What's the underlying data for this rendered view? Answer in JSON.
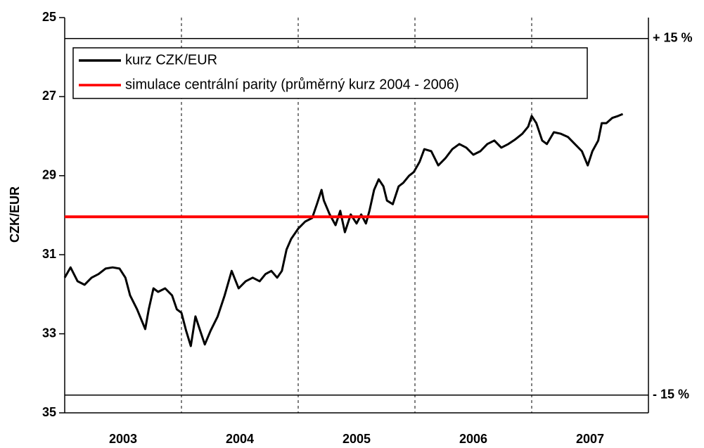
{
  "chart_data": {
    "type": "line",
    "ylabel": "CZK/EUR",
    "categories": [
      "2003",
      "2004",
      "2005",
      "2006",
      "2007"
    ],
    "xlim": [
      2003,
      2008
    ],
    "ylim": [
      25,
      35
    ],
    "y_inverted": true,
    "yticks": [
      25,
      27,
      29,
      31,
      33,
      35
    ],
    "legend": "upper left",
    "series": [
      {
        "name": "kurz CZK/EUR",
        "color": "#000000",
        "x": [
          2003.0,
          2003.05,
          2003.11,
          2003.17,
          2003.23,
          2003.29,
          2003.35,
          2003.41,
          2003.47,
          2003.52,
          2003.56,
          2003.62,
          2003.69,
          2003.72,
          2003.76,
          2003.8,
          2003.86,
          2003.92,
          2003.96,
          2004.0,
          2004.04,
          2004.08,
          2004.12,
          2004.16,
          2004.2,
          2004.25,
          2004.31,
          2004.37,
          2004.43,
          2004.49,
          2004.55,
          2004.61,
          2004.67,
          2004.72,
          2004.77,
          2004.82,
          2004.86,
          2004.9,
          2004.94,
          2005.0,
          2005.06,
          2005.12,
          2005.16,
          2005.2,
          2005.22,
          2005.27,
          2005.32,
          2005.36,
          2005.4,
          2005.45,
          2005.5,
          2005.54,
          2005.58,
          2005.61,
          2005.65,
          2005.69,
          2005.73,
          2005.76,
          2005.81,
          2005.86,
          2005.9,
          2005.95,
          2005.99,
          2006.04,
          2006.08,
          2006.14,
          2006.2,
          2006.26,
          2006.32,
          2006.38,
          2006.44,
          2006.5,
          2006.56,
          2006.62,
          2006.68,
          2006.74,
          2006.8,
          2006.86,
          2006.92,
          2006.97,
          2007.0,
          2007.04,
          2007.09,
          2007.13,
          2007.19,
          2007.25,
          2007.31,
          2007.37,
          2007.43,
          2007.48,
          2007.52,
          2007.57,
          2007.6,
          2007.64,
          2007.69,
          2007.74,
          2007.78
        ],
        "values": [
          31.58,
          31.32,
          31.67,
          31.76,
          31.58,
          31.49,
          31.35,
          31.32,
          31.35,
          31.58,
          32.03,
          32.38,
          32.88,
          32.38,
          31.85,
          31.94,
          31.85,
          32.03,
          32.38,
          32.47,
          32.92,
          33.31,
          32.56,
          32.92,
          33.27,
          32.92,
          32.56,
          32.03,
          31.41,
          31.85,
          31.67,
          31.58,
          31.67,
          31.49,
          31.41,
          31.58,
          31.41,
          30.87,
          30.6,
          30.34,
          30.16,
          30.07,
          29.72,
          29.36,
          29.63,
          29.98,
          30.25,
          29.89,
          30.43,
          29.98,
          30.21,
          29.98,
          30.21,
          29.89,
          29.36,
          29.09,
          29.27,
          29.63,
          29.72,
          29.27,
          29.18,
          29.0,
          28.91,
          28.65,
          28.33,
          28.38,
          28.74,
          28.56,
          28.33,
          28.2,
          28.29,
          28.47,
          28.38,
          28.2,
          28.11,
          28.29,
          28.2,
          28.08,
          27.94,
          27.76,
          27.49,
          27.67,
          28.11,
          28.2,
          27.9,
          27.94,
          28.02,
          28.2,
          28.38,
          28.74,
          28.38,
          28.11,
          27.67,
          27.67,
          27.54,
          27.49,
          27.44
        ]
      },
      {
        "name": "simulace centrální parity (průměrný kurz 2004 - 2006)",
        "color": "#ff0000",
        "value": 30.04
      }
    ],
    "bands": [
      {
        "label": "+ 15 %",
        "value": 25.53
      },
      {
        "label": "- 15 %",
        "value": 34.55
      }
    ]
  }
}
